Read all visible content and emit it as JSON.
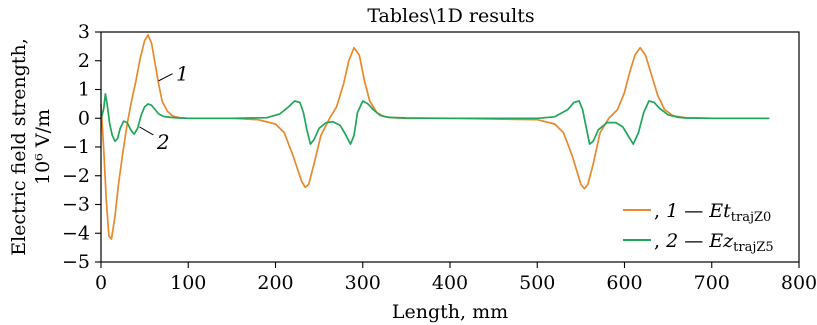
{
  "chart_data": {
    "type": "line",
    "title": "Tables\\1D results",
    "xlabel": "Length, mm",
    "ylabel_line1": "Electric field strength,",
    "ylabel_line2": "10⁶ V/m",
    "xlim": [
      0,
      800
    ],
    "ylim": [
      -5,
      3
    ],
    "xticks": [
      0,
      100,
      200,
      300,
      400,
      500,
      600,
      700,
      800
    ],
    "yticks": [
      3,
      2,
      1,
      0,
      -1,
      -2,
      -3,
      -4,
      -5
    ],
    "grid": false,
    "legend_position": "bottom-right",
    "series": [
      {
        "name": ", 1 — Et_trajZ0",
        "legend_prefix": ", ",
        "legend_number": "1",
        "legend_dash": " — ",
        "legend_var": "Et",
        "legend_sub": "trajZ0",
        "marker_label": "1",
        "color": "#e8892b",
        "x": [
          0,
          3,
          6,
          9,
          12,
          16,
          20,
          25,
          30,
          35,
          40,
          45,
          50,
          54,
          58,
          62,
          66,
          70,
          76,
          82,
          90,
          100,
          150,
          180,
          200,
          210,
          220,
          230,
          234,
          238,
          244,
          252,
          262,
          270,
          278,
          284,
          290,
          296,
          302,
          308,
          316,
          324,
          334,
          350,
          400,
          500,
          520,
          530,
          540,
          550,
          554,
          558,
          564,
          572,
          582,
          592,
          600,
          606,
          612,
          618,
          624,
          630,
          638,
          646,
          656,
          670,
          700,
          766
        ],
        "y": [
          0.5,
          -1.0,
          -2.8,
          -4.1,
          -4.2,
          -3.4,
          -2.3,
          -1.2,
          -0.2,
          0.6,
          1.3,
          2.1,
          2.7,
          2.9,
          2.6,
          1.9,
          1.2,
          0.6,
          0.25,
          0.08,
          0.02,
          0.0,
          0.0,
          -0.05,
          -0.2,
          -0.5,
          -1.3,
          -2.2,
          -2.4,
          -2.3,
          -1.6,
          -0.6,
          0.0,
          0.4,
          1.2,
          2.0,
          2.45,
          2.2,
          1.3,
          0.6,
          0.2,
          0.06,
          0.02,
          0.0,
          0.0,
          -0.05,
          -0.2,
          -0.5,
          -1.3,
          -2.3,
          -2.45,
          -2.3,
          -1.6,
          -0.5,
          0.0,
          0.3,
          0.9,
          1.6,
          2.2,
          2.45,
          2.2,
          1.6,
          0.8,
          0.3,
          0.08,
          0.02,
          0.0,
          0.0
        ]
      },
      {
        "name": ", 2 — Ez_trajZ5",
        "legend_prefix": ", ",
        "legend_number": "2",
        "legend_dash": " — ",
        "legend_var": "Ez",
        "legend_sub": "trajZ5",
        "marker_label": "2",
        "color": "#1fa65a",
        "x": [
          0,
          3,
          5,
          7,
          10,
          13,
          16,
          19,
          22,
          26,
          30,
          34,
          38,
          42,
          46,
          50,
          54,
          58,
          62,
          66,
          72,
          80,
          90,
          100,
          150,
          190,
          205,
          215,
          222,
          228,
          232,
          236,
          240,
          244,
          250,
          258,
          266,
          274,
          280,
          286,
          290,
          294,
          300,
          306,
          312,
          320,
          330,
          350,
          400,
          500,
          520,
          535,
          542,
          548,
          552,
          556,
          560,
          564,
          570,
          580,
          590,
          598,
          604,
          610,
          616,
          622,
          628,
          634,
          640,
          650,
          660,
          670,
          700,
          766
        ],
        "y": [
          0.0,
          0.3,
          0.85,
          0.5,
          -0.2,
          -0.6,
          -0.8,
          -0.7,
          -0.35,
          -0.1,
          -0.15,
          -0.4,
          -0.55,
          -0.35,
          0.1,
          0.4,
          0.5,
          0.45,
          0.3,
          0.15,
          0.06,
          0.03,
          0.01,
          0.0,
          0.0,
          0.02,
          0.15,
          0.4,
          0.6,
          0.55,
          0.2,
          -0.4,
          -0.9,
          -0.75,
          -0.35,
          -0.15,
          -0.12,
          -0.25,
          -0.55,
          -0.9,
          -0.6,
          0.2,
          0.6,
          0.5,
          0.3,
          0.1,
          0.03,
          0.01,
          0.0,
          0.0,
          0.05,
          0.3,
          0.55,
          0.6,
          0.3,
          -0.3,
          -0.9,
          -0.8,
          -0.4,
          -0.15,
          -0.15,
          -0.3,
          -0.6,
          -0.9,
          -0.5,
          0.2,
          0.6,
          0.55,
          0.35,
          0.12,
          0.04,
          0.01,
          0.0,
          0.0
        ]
      }
    ]
  }
}
